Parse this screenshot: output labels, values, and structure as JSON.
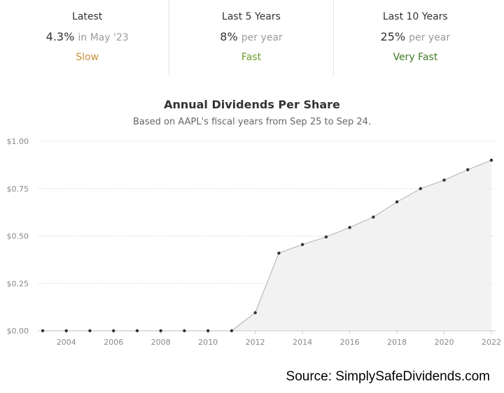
{
  "stats": [
    {
      "label": "Latest",
      "value": "4.3%",
      "suffix": "in May '23",
      "rating": "Slow",
      "rating_color": "#c8903a"
    },
    {
      "label": "Last 5 Years",
      "value": "8%",
      "suffix": "per year",
      "rating": "Fast",
      "rating_color": "#6a9a2a"
    },
    {
      "label": "Last 10 Years",
      "value": "25%",
      "suffix": "per year",
      "rating": "Very Fast",
      "rating_color": "#3e7a22"
    }
  ],
  "source": "Source: SimplySafeDividends.com",
  "chart_data": {
    "type": "area",
    "title": "Annual Dividends Per Share",
    "subtitle": "Based on AAPL's fiscal years from Sep 25 to Sep 24.",
    "x": [
      2003,
      2004,
      2005,
      2006,
      2007,
      2008,
      2009,
      2010,
      2011,
      2012,
      2013,
      2014,
      2015,
      2016,
      2017,
      2018,
      2019,
      2020,
      2021,
      2022
    ],
    "values": [
      0,
      0,
      0,
      0,
      0,
      0,
      0,
      0,
      0,
      0.095,
      0.41,
      0.455,
      0.495,
      0.545,
      0.6,
      0.68,
      0.75,
      0.795,
      0.85,
      0.9
    ],
    "xticks": [
      "2004",
      "2006",
      "2008",
      "2010",
      "2012",
      "2014",
      "2016",
      "2018",
      "2020",
      "2022"
    ],
    "xtick_values": [
      2004,
      2006,
      2008,
      2010,
      2012,
      2014,
      2016,
      2018,
      2020,
      2022
    ],
    "yticks": [
      "$0.00",
      "$0.25",
      "$0.50",
      "$0.75",
      "$1.00"
    ],
    "ytick_values": [
      0,
      0.25,
      0.5,
      0.75,
      1.0
    ],
    "xlim": [
      2003,
      2022
    ],
    "ylim": [
      0,
      1.0
    ],
    "grid": true,
    "line_color": "#bbbbbb",
    "fill_color": "#f2f2f2",
    "point_color": "#333333"
  }
}
